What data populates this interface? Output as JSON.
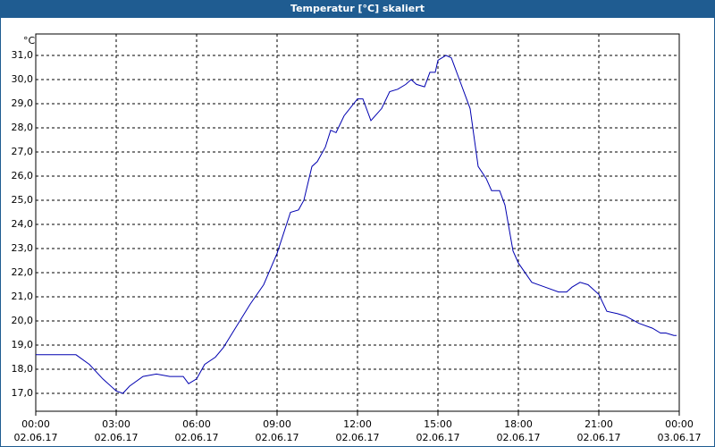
{
  "chart_data": {
    "type": "line",
    "title": "Temperatur [°C] skaliert",
    "y_label": "°C",
    "x": [
      0,
      0.5,
      1,
      1.5,
      2,
      2.5,
      3,
      3.25,
      3.5,
      4,
      4.5,
      5,
      5.5,
      5.7,
      6,
      6.3,
      6.7,
      7,
      7.5,
      8,
      8.5,
      9,
      9.5,
      9.8,
      10,
      10.3,
      10.5,
      10.8,
      11,
      11.2,
      11.5,
      12,
      12.2,
      12.5,
      12.9,
      13.2,
      13.5,
      13.8,
      14,
      14.2,
      14.5,
      14.7,
      14.9,
      15,
      15.3,
      15.5,
      15.8,
      16.2,
      16.5,
      16.8,
      17,
      17.3,
      17.5,
      17.8,
      18,
      18.5,
      19,
      19.5,
      19.8,
      20,
      20.3,
      20.6,
      21,
      21.3,
      21.7,
      22,
      22.5,
      23,
      23.3,
      23.5,
      23.8,
      23.9
    ],
    "series": [
      {
        "name": "Temperatur",
        "color": "#0000b0",
        "values": [
          18.6,
          18.6,
          18.6,
          18.6,
          18.2,
          17.6,
          17.1,
          17.0,
          17.3,
          17.7,
          17.8,
          17.7,
          17.7,
          17.4,
          17.6,
          18.2,
          18.5,
          18.9,
          19.8,
          20.7,
          21.5,
          22.8,
          24.5,
          24.6,
          25.0,
          26.4,
          26.6,
          27.2,
          27.9,
          27.8,
          28.5,
          29.2,
          29.2,
          28.3,
          28.8,
          29.5,
          29.6,
          29.8,
          30.0,
          29.8,
          29.7,
          30.3,
          30.3,
          30.8,
          31.0,
          30.9,
          30.0,
          28.8,
          26.4,
          25.9,
          25.4,
          25.4,
          24.8,
          22.9,
          22.4,
          21.6,
          21.4,
          21.2,
          21.2,
          21.4,
          21.6,
          21.5,
          21.1,
          20.4,
          20.3,
          20.2,
          19.9,
          19.7,
          19.5,
          19.5,
          19.4,
          19.4
        ]
      }
    ],
    "xlim": [
      0,
      24
    ],
    "xticks": [
      {
        "value": 0,
        "label": "00:00",
        "date": "02.06.17"
      },
      {
        "value": 3,
        "label": "03:00",
        "date": "02.06.17"
      },
      {
        "value": 6,
        "label": "06:00",
        "date": "02.06.17"
      },
      {
        "value": 9,
        "label": "09:00",
        "date": "02.06.17"
      },
      {
        "value": 12,
        "label": "12:00",
        "date": "02.06.17"
      },
      {
        "value": 15,
        "label": "15:00",
        "date": "02.06.17"
      },
      {
        "value": 18,
        "label": "18:00",
        "date": "02.06.17"
      },
      {
        "value": 21,
        "label": "21:00",
        "date": "02.06.17"
      },
      {
        "value": 24,
        "label": "00:00",
        "date": "03.06.17"
      }
    ],
    "ylim": [
      16.26,
      31.89
    ],
    "yticks": [
      {
        "value": 17,
        "label": "17,0"
      },
      {
        "value": 18,
        "label": "18,0"
      },
      {
        "value": 19,
        "label": "19,0"
      },
      {
        "value": 20,
        "label": "20,0"
      },
      {
        "value": 21,
        "label": "21,0"
      },
      {
        "value": 22,
        "label": "22,0"
      },
      {
        "value": 23,
        "label": "23,0"
      },
      {
        "value": 24,
        "label": "24,0"
      },
      {
        "value": 25,
        "label": "25,0"
      },
      {
        "value": 26,
        "label": "26,0"
      },
      {
        "value": 27,
        "label": "27,0"
      },
      {
        "value": 28,
        "label": "28,0"
      },
      {
        "value": 29,
        "label": "29,0"
      },
      {
        "value": 30,
        "label": "30,0"
      },
      {
        "value": 31,
        "label": "31,0"
      }
    ],
    "grid": true
  }
}
